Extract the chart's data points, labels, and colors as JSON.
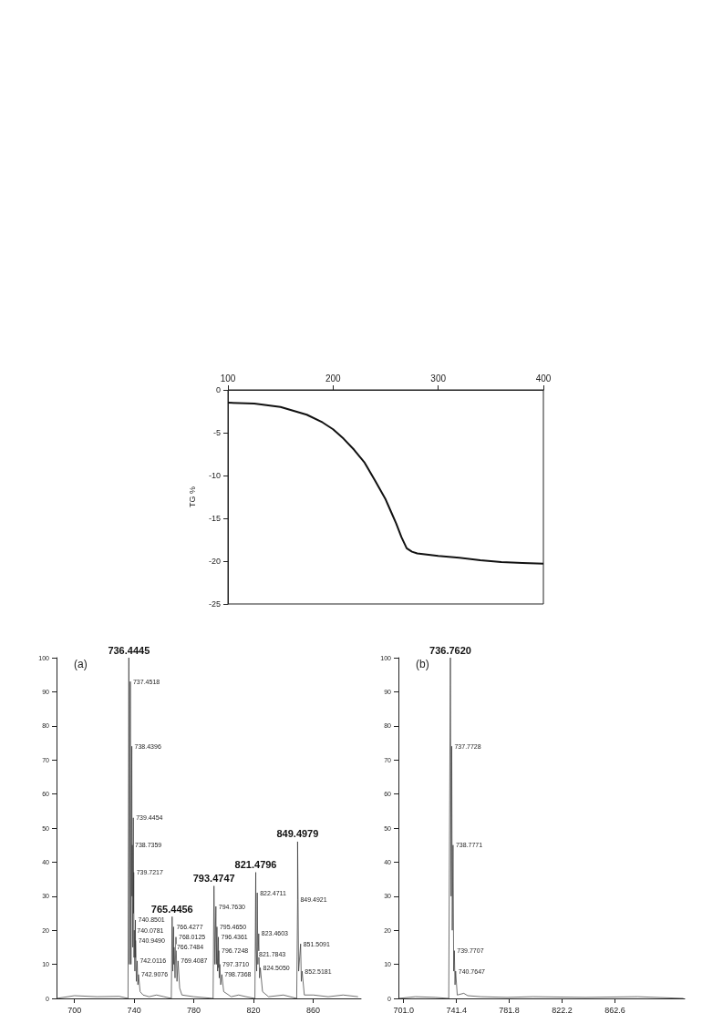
{
  "chart_data": [
    {
      "type": "line",
      "ylabel": "TG %",
      "xlim": [
        100,
        400
      ],
      "xticks": [
        100,
        200,
        300,
        400
      ],
      "ylim": [
        -25,
        0
      ],
      "yticks": [
        -25,
        -20,
        -15,
        -10,
        -5,
        0
      ],
      "marker": "none",
      "line_style": "solid",
      "series": [
        {
          "color": "#111111",
          "x": [
            100,
            125,
            150,
            175,
            190,
            200,
            210,
            220,
            230,
            240,
            250,
            255,
            260,
            265,
            270,
            275,
            280,
            300,
            320,
            340,
            360,
            380,
            400
          ],
          "values": [
            -1.5,
            -1.6,
            -2.0,
            -2.9,
            -3.8,
            -4.6,
            -5.7,
            -7.0,
            -8.5,
            -10.6,
            -12.8,
            -14.2,
            -15.6,
            -17.2,
            -18.5,
            -18.9,
            -19.1,
            -19.4,
            -19.6,
            -19.9,
            -20.1,
            -20.2,
            -20.3
          ]
        }
      ]
    },
    {
      "type": "line",
      "title": "(a)",
      "xlim": [
        688,
        892
      ],
      "xticks": [
        700,
        740,
        780,
        820,
        860
      ],
      "ylim": [
        0,
        100
      ],
      "yticks": [
        0,
        10,
        20,
        30,
        40,
        50,
        60,
        70,
        80,
        90,
        100
      ],
      "marker": "none",
      "line_style": "solid",
      "annotations": [
        {
          "text": "736.4445",
          "x": 736.4445,
          "y": 100
        },
        {
          "text": "765.4456",
          "x": 765.4456,
          "y": 24
        },
        {
          "text": "793.4747",
          "x": 793.4747,
          "y": 33
        },
        {
          "text": "821.4796",
          "x": 821.4796,
          "y": 37
        },
        {
          "text": "849.4979",
          "x": 849.4979,
          "y": 46
        },
        {
          "text": "737.4518",
          "x": 737.4518,
          "y": 93
        },
        {
          "text": "738.4396",
          "x": 738.4396,
          "y": 74
        },
        {
          "text": "738.7359",
          "x": 738.7359,
          "y": 45
        },
        {
          "text": "739.4454",
          "x": 739.4454,
          "y": 53
        },
        {
          "text": "739.7217",
          "x": 739.7217,
          "y": 37
        },
        {
          "text": "740.0781",
          "x": 740.0781,
          "y": 20
        },
        {
          "text": "740.8501",
          "x": 740.8501,
          "y": 23
        },
        {
          "text": "740.9490",
          "x": 740.949,
          "y": 17
        },
        {
          "text": "742.0116",
          "x": 742.0116,
          "y": 11
        },
        {
          "text": "742.9076",
          "x": 742.9076,
          "y": 7
        },
        {
          "text": "766.4277",
          "x": 766.4277,
          "y": 21
        },
        {
          "text": "766.7484",
          "x": 766.7484,
          "y": 15
        },
        {
          "text": "768.0125",
          "x": 768.0125,
          "y": 18
        },
        {
          "text": "769.4087",
          "x": 769.4087,
          "y": 11
        },
        {
          "text": "794.7630",
          "x": 794.763,
          "y": 27
        },
        {
          "text": "795.4650",
          "x": 795.465,
          "y": 21
        },
        {
          "text": "796.4361",
          "x": 796.4361,
          "y": 18
        },
        {
          "text": "796.7248",
          "x": 796.7248,
          "y": 14
        },
        {
          "text": "797.3710",
          "x": 797.371,
          "y": 10
        },
        {
          "text": "798.7368",
          "x": 798.7368,
          "y": 7
        },
        {
          "text": "821.7843",
          "x": 821.7843,
          "y": 13
        },
        {
          "text": "822.4711",
          "x": 822.4711,
          "y": 31
        },
        {
          "text": "823.4603",
          "x": 823.4603,
          "y": 19
        },
        {
          "text": "824.5050",
          "x": 824.505,
          "y": 9
        },
        {
          "text": "849.4921",
          "x": 849.4921,
          "y": 29
        },
        {
          "text": "851.5091",
          "x": 851.5091,
          "y": 16
        },
        {
          "text": "852.5181",
          "x": 852.5181,
          "y": 8
        }
      ],
      "series": [
        {
          "color": "#333333",
          "x": [
            688,
            700,
            715,
            730,
            735.9,
            736.4445,
            736.9,
            737.4518,
            737.9,
            738.4396,
            738.6,
            738.7359,
            739.1,
            739.4454,
            739.6,
            739.7217,
            739.9,
            740.0781,
            740.5,
            740.8501,
            740.9,
            740.949,
            741.5,
            742.0116,
            742.5,
            742.9076,
            744,
            746,
            750,
            755,
            760,
            764.9,
            765.4456,
            765.9,
            766.4277,
            766.6,
            766.7484,
            767.4,
            768.0125,
            768.7,
            769.4087,
            770.5,
            772,
            780,
            792.9,
            793.4747,
            794.1,
            794.763,
            795.1,
            795.465,
            795.9,
            796.4361,
            796.6,
            796.7248,
            797.0,
            797.371,
            798,
            798.7368,
            800,
            805,
            810,
            815,
            820.9,
            821.4796,
            821.6,
            821.7843,
            822.1,
            822.4711,
            822.9,
            823.4603,
            824,
            824.505,
            826,
            830,
            840,
            848.9,
            849.4921,
            849.4979,
            850.2,
            851.5091,
            852,
            852.5181,
            854,
            860,
            870,
            880,
            890
          ],
          "values": [
            0,
            0.8,
            0.5,
            0.6,
            0,
            100,
            10,
            93,
            10,
            74,
            30,
            45,
            15,
            53,
            25,
            37,
            12,
            20,
            8,
            23,
            12,
            17,
            5,
            11,
            4,
            7,
            2,
            1,
            0.5,
            1,
            0.5,
            0,
            24,
            8,
            21,
            10,
            15,
            6,
            18,
            5,
            11,
            3,
            1,
            0.5,
            0,
            33,
            10,
            27,
            10,
            21,
            8,
            18,
            9,
            14,
            6,
            10,
            4,
            7,
            2,
            0.5,
            1,
            0.5,
            0,
            37,
            15,
            13,
            8,
            31,
            10,
            19,
            6,
            9,
            2,
            0.5,
            1,
            0,
            29,
            46,
            8,
            16,
            5,
            8,
            1,
            1,
            0.5,
            1,
            0.5
          ]
        }
      ]
    },
    {
      "type": "line",
      "title": "(b)",
      "xlim": [
        697,
        916
      ],
      "xticks": [
        {
          "value": 701,
          "label": "701.0"
        },
        741.4,
        781.8,
        822.2,
        862.6
      ],
      "ylim": [
        0,
        100
      ],
      "yticks": [
        0,
        10,
        20,
        30,
        40,
        50,
        60,
        70,
        80,
        90,
        100
      ],
      "marker": "none",
      "line_style": "solid",
      "annotations": [
        {
          "text": "736.7620",
          "x": 736.762,
          "y": 100
        },
        {
          "text": "737.7728",
          "x": 737.7728,
          "y": 74
        },
        {
          "text": "738.7771",
          "x": 738.7771,
          "y": 45
        },
        {
          "text": "739.7707",
          "x": 739.7707,
          "y": 14
        },
        {
          "text": "740.7647",
          "x": 740.7647,
          "y": 8
        }
      ],
      "series": [
        {
          "color": "#333333",
          "x": [
            697,
            710,
            725,
            735.5,
            736.762,
            737.3,
            737.7728,
            738.2,
            738.7771,
            739.3,
            739.7707,
            740.3,
            740.7647,
            742,
            747,
            750,
            760,
            780,
            800,
            840,
            880,
            915
          ],
          "values": [
            0,
            0.5,
            0.3,
            0,
            100,
            30,
            74,
            20,
            45,
            8,
            14,
            4,
            8,
            1,
            1.5,
            0.8,
            0.5,
            0.3,
            0.5,
            0.3,
            0.5,
            0
          ]
        }
      ]
    }
  ]
}
